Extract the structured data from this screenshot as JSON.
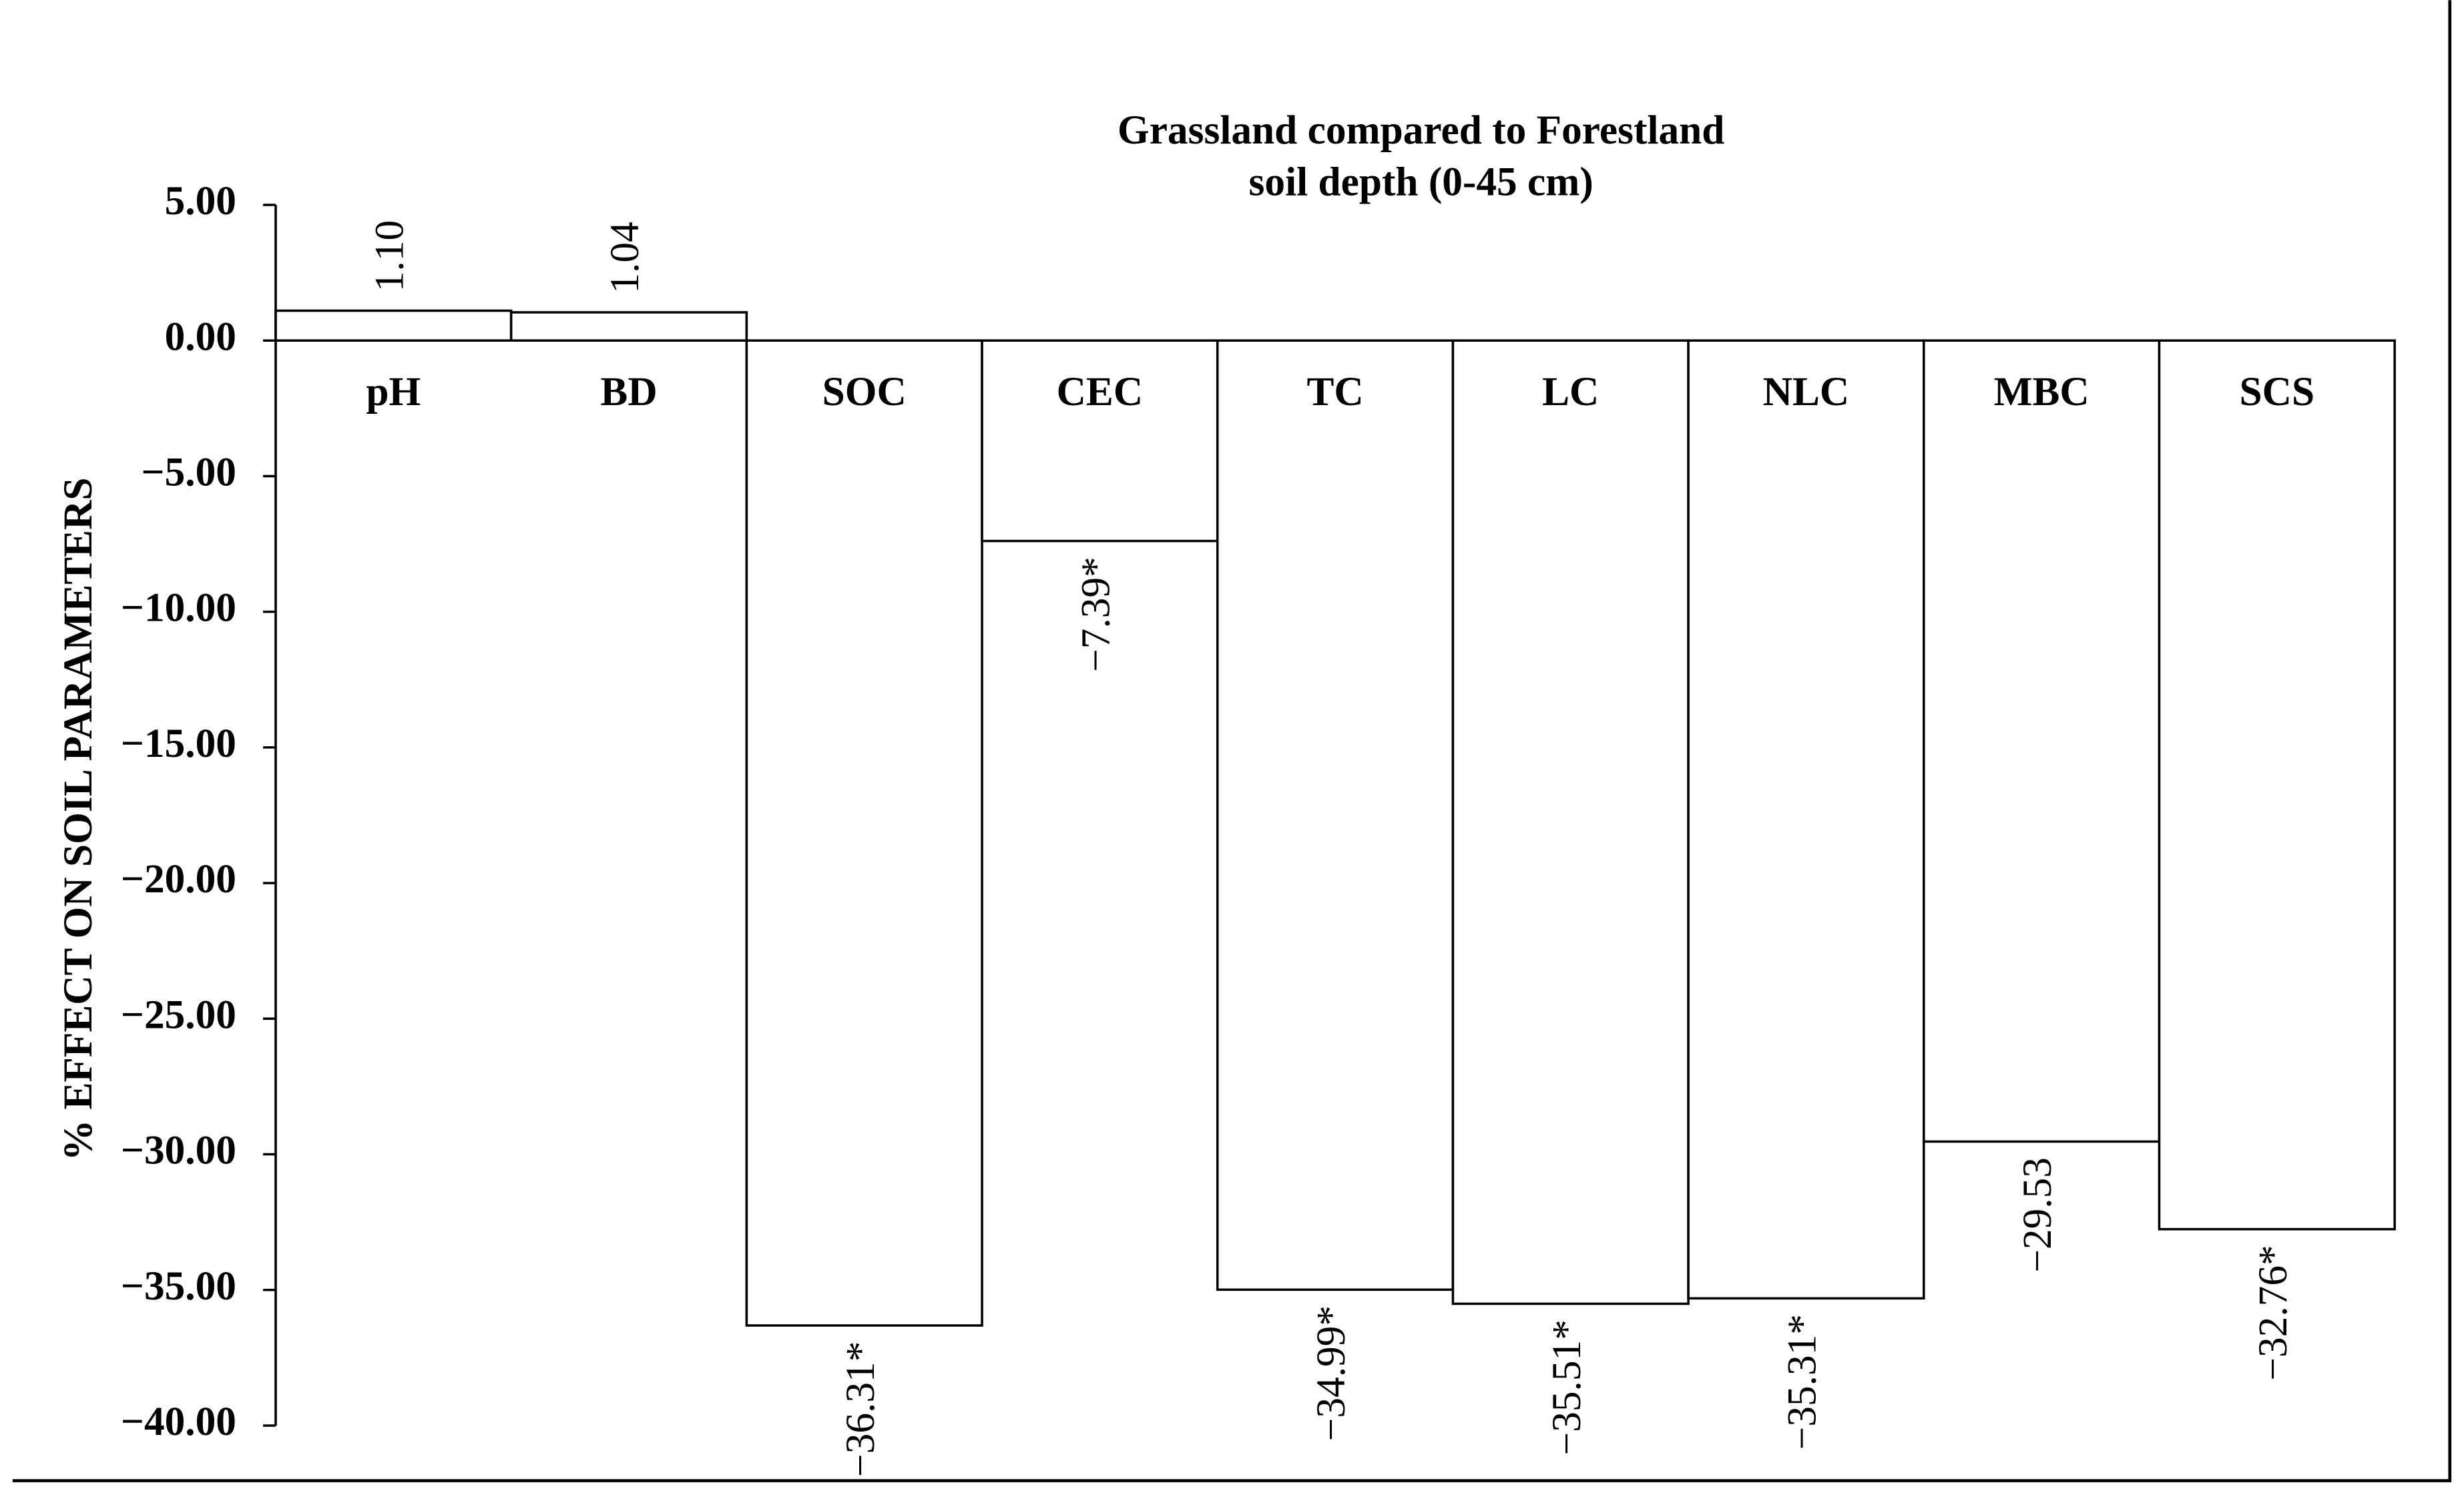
{
  "chart_data": {
    "type": "bar",
    "title": "Grassland compared to Forestland",
    "subtitle": "soil depth (0-45 cm)",
    "y_label": "% EFFECT  ON SOIL PARAMETERS",
    "categories": [
      "pH",
      "BD",
      "SOC",
      "CEC",
      "TC",
      "LC",
      "NLC",
      "MBC",
      "SCS"
    ],
    "values": [
      1.1,
      1.04,
      -36.31,
      -7.39,
      -34.99,
      -35.51,
      -35.31,
      -29.53,
      -32.76
    ],
    "value_labels": [
      "1.10",
      "1.04",
      "−36.31*",
      "−7.39*",
      "−34.99*",
      "−35.51*",
      "−35.31*",
      "−29.53",
      "−32.76*"
    ],
    "color": "#ffffff",
    "ylim": [
      -40,
      5
    ],
    "yticks": [
      {
        "value": 5,
        "label": "5.00"
      },
      {
        "value": 0,
        "label": "0.00"
      },
      {
        "value": -5,
        "label": "−5.00"
      },
      {
        "value": -10,
        "label": "−10.00"
      },
      {
        "value": -15,
        "label": "−15.00"
      },
      {
        "value": -20,
        "label": "−20.00"
      },
      {
        "value": -25,
        "label": "−25.00"
      },
      {
        "value": -30,
        "label": "−30.00"
      },
      {
        "value": -35,
        "label": "−35.00"
      },
      {
        "value": -40,
        "label": "−40.00"
      }
    ],
    "grid": false
  }
}
